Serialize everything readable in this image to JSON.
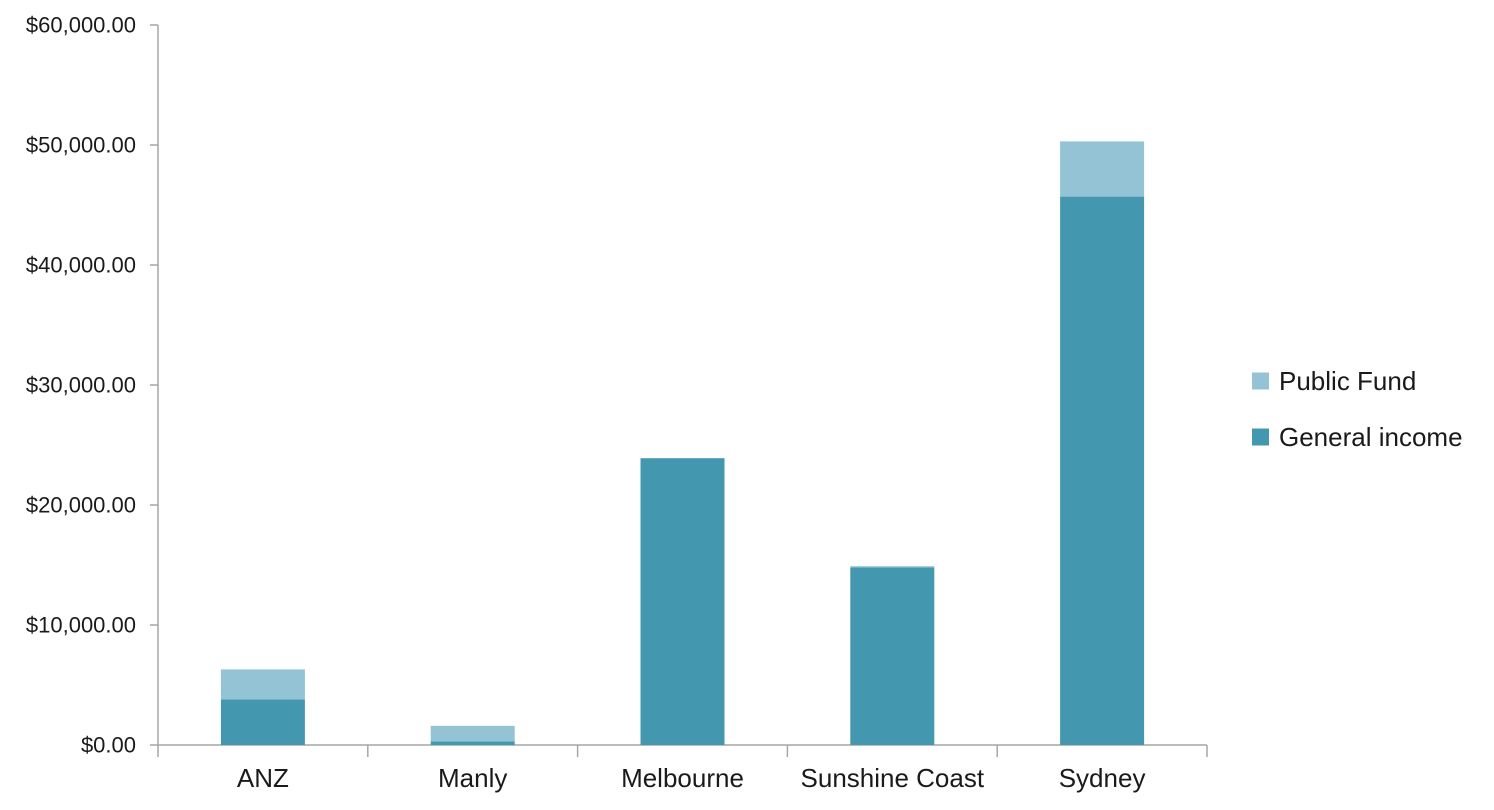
{
  "chart_data": {
    "type": "bar",
    "stacked": true,
    "title": "",
    "xlabel": "",
    "ylabel": "",
    "categories": [
      "ANZ",
      "Manly",
      "Melbourne",
      "Sunshine Coast",
      "Sydney"
    ],
    "series": [
      {
        "name": "General income",
        "values": [
          3800,
          300,
          23900,
          14800,
          45700
        ],
        "color": "#4398b0"
      },
      {
        "name": "Public Fund",
        "values": [
          2500,
          1300,
          0,
          100,
          4600
        ],
        "color": "#93c3d4"
      }
    ],
    "ylim": [
      0,
      60000
    ],
    "yticks": [
      0,
      10000,
      20000,
      30000,
      40000,
      50000,
      60000
    ],
    "ytick_labels": [
      "$0.00",
      "$10,000.00",
      "$20,000.00",
      "$30,000.00",
      "$40,000.00",
      "$50,000.00",
      "$60,000.00"
    ],
    "legend": {
      "position": "right",
      "entries": [
        "Public Fund",
        "General income"
      ]
    },
    "grid": false,
    "axis_color": "#a6a6a6"
  }
}
